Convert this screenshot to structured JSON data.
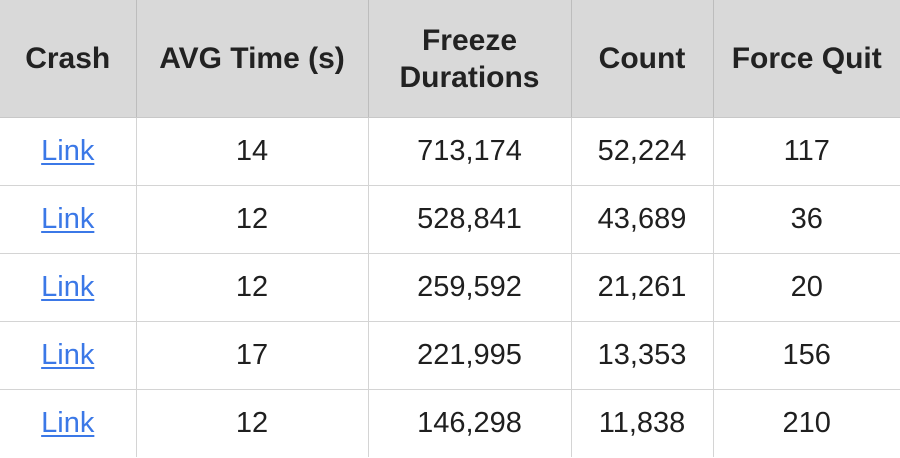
{
  "table": {
    "headers": {
      "crash": "Crash",
      "avg_time": "AVG Time (s)",
      "freeze_durations": "Freeze Durations",
      "count": "Count",
      "force_quit": "Force Quit"
    },
    "rows": [
      {
        "crash_link": "Link",
        "avg_time": "14",
        "freeze_durations": "713,174",
        "count": "52,224",
        "force_quit": "117"
      },
      {
        "crash_link": "Link",
        "avg_time": "12",
        "freeze_durations": "528,841",
        "count": "43,689",
        "force_quit": "36"
      },
      {
        "crash_link": "Link",
        "avg_time": "12",
        "freeze_durations": "259,592",
        "count": "21,261",
        "force_quit": "20"
      },
      {
        "crash_link": "Link",
        "avg_time": "17",
        "freeze_durations": "221,995",
        "count": "13,353",
        "force_quit": "156"
      },
      {
        "crash_link": "Link",
        "avg_time": "12",
        "freeze_durations": "146,298",
        "count": "11,838",
        "force_quit": "210"
      }
    ]
  },
  "colors": {
    "header_background": "#d9d9d9",
    "link": "#3b78e7",
    "text": "#1f1f1f"
  }
}
